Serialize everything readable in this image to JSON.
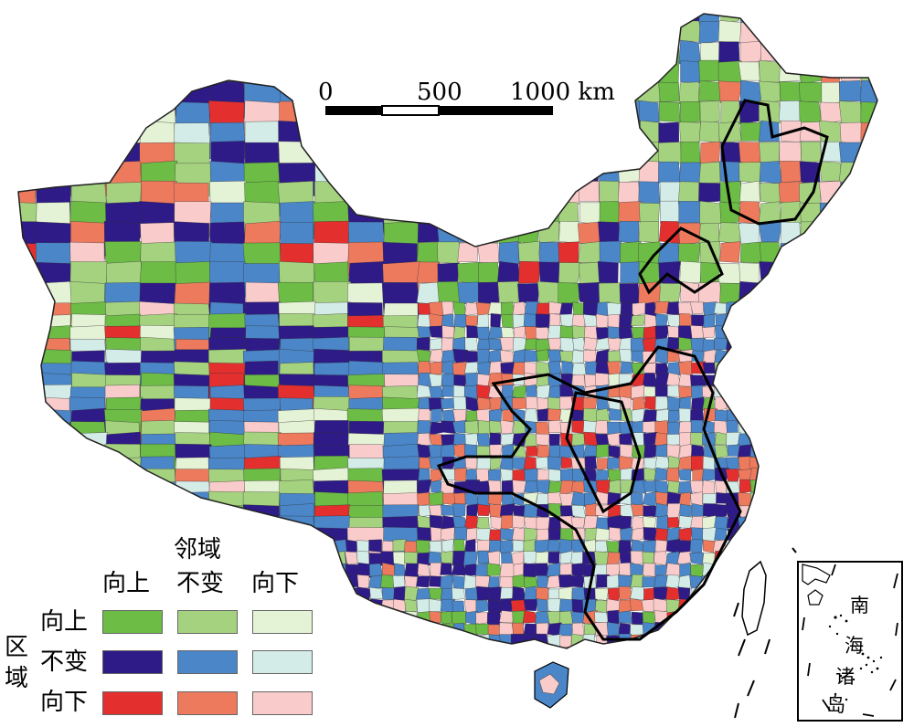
{
  "scale_bar": {
    "labels": [
      "0",
      "500",
      "1000 km"
    ]
  },
  "legend": {
    "neighbor_title": "邻域",
    "neighbor_columns": [
      "向上",
      "不变",
      "向下"
    ],
    "region_title": "区域",
    "region_rows": [
      "向上",
      "不变",
      "向下"
    ],
    "colors": [
      [
        "#6cbc45",
        "#a5d27f",
        "#e4f2d5"
      ],
      [
        "#2e1b87",
        "#4a86c8",
        "#d4ece8"
      ],
      [
        "#e3302f",
        "#ee7a5e",
        "#f9cbcb"
      ]
    ]
  },
  "inset": {
    "label": "南海诸岛",
    "chars": [
      "南",
      "海",
      "诸",
      "岛"
    ]
  },
  "map": {
    "region_colors": [
      "#6cbc45",
      "#a5d27f",
      "#e4f2d5",
      "#2e1b87",
      "#4a86c8",
      "#d4ece8",
      "#e3302f",
      "#ee7a5e",
      "#f9cbcb"
    ],
    "border_color": "#000000"
  }
}
